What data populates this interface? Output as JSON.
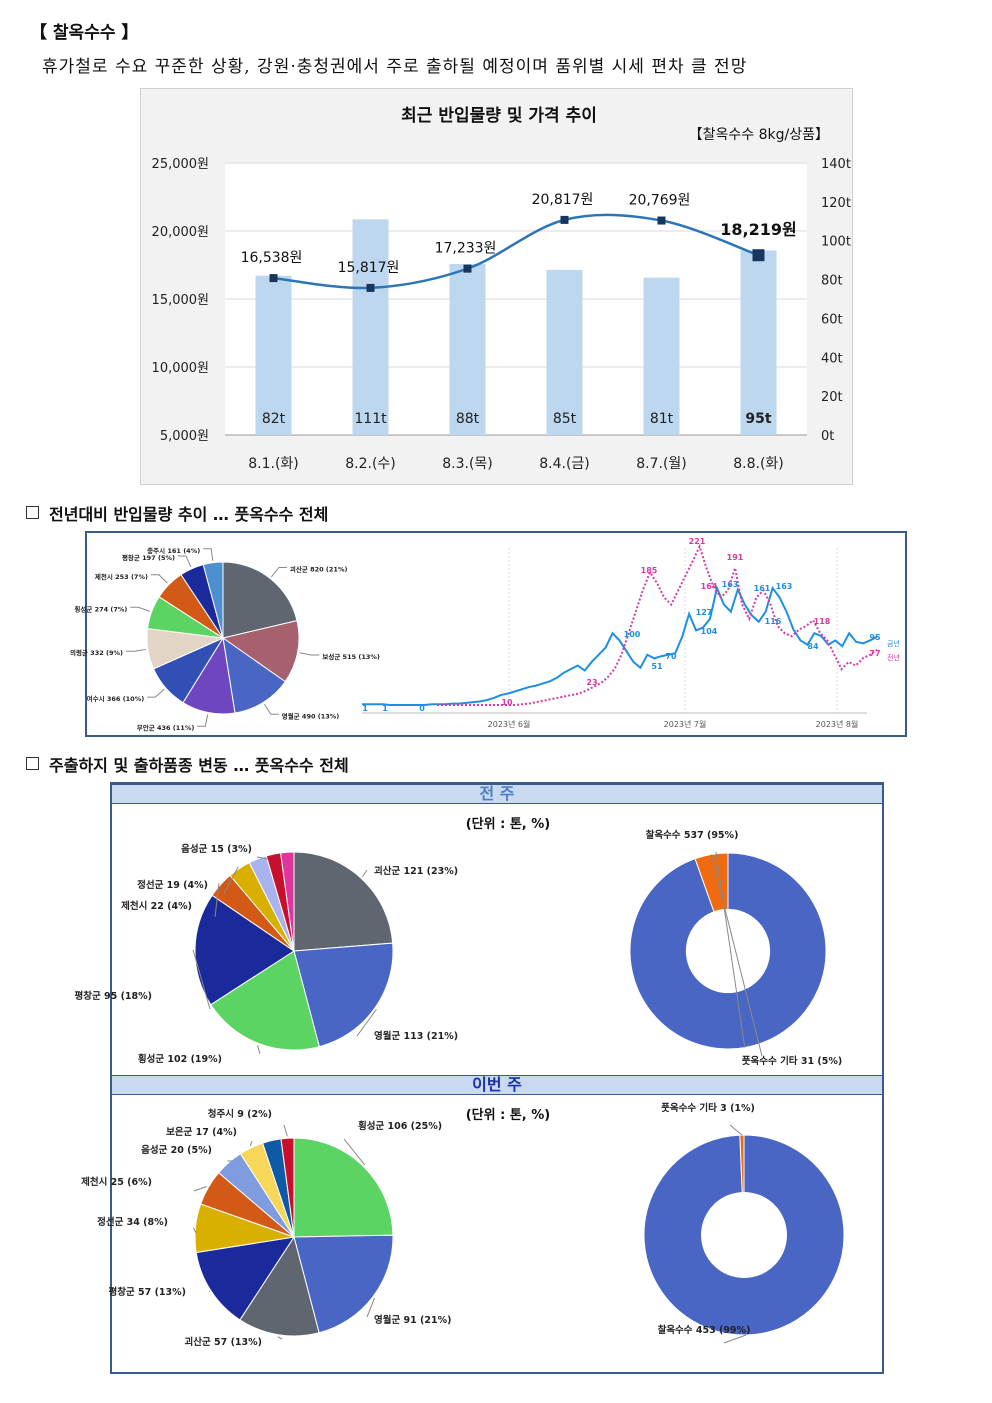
{
  "header": {
    "title": "【 찰옥수수 】",
    "subtitle": "휴가철로 수요 꾸준한 상황, 강원·충청권에서 주로 출하될 예정이며 품위별 시세 편차 클 전망"
  },
  "colors": {
    "bar": "#bdd7ee",
    "line": "#2e75b6",
    "marker": "#17375e",
    "box_border": "#3a5a8c",
    "band_bg": "#c9d9ef"
  },
  "chart_data": [
    {
      "type": "bar",
      "title": "최근 반입물량 및 가격 추이",
      "subtitle": "【찰옥수수 8kg/상품】",
      "categories": [
        "8.1.(화)",
        "8.2.(수)",
        "8.3.(목)",
        "8.4.(금)",
        "8.7.(월)",
        "8.8.(화)"
      ],
      "series": [
        {
          "values": [
            82,
            111,
            88,
            85,
            81,
            95
          ],
          "labels": [
            "82t",
            "111t",
            "88t",
            "85t",
            "81t",
            "95t"
          ]
        },
        {
          "values": [
            16538,
            15817,
            17233,
            20817,
            20769,
            18219
          ],
          "labels": [
            "16,538원",
            "15,817원",
            "17,233원",
            "20,817원",
            "20,769원",
            "18,219원"
          ]
        }
      ],
      "y_left": {
        "min": 5000,
        "max": 25000,
        "ticks": [
          "5,000원",
          "10,000원",
          "15,000원",
          "20,000원",
          "25,000원"
        ]
      },
      "y_right": {
        "min": 0,
        "max": 140,
        "ticks": [
          "0t",
          "20t",
          "40t",
          "60t",
          "80t",
          "100t",
          "120t",
          "140t"
        ]
      },
      "grid": true
    },
    {
      "type": "pie",
      "section": "전년대비 반입물량 추이 … 풋옥수수 전체",
      "slices": [
        {
          "label": "괴산군 820 (21%)",
          "value": 820,
          "color": "#5f6670"
        },
        {
          "label": "보성군 515 (13%)",
          "value": 515,
          "color": "#a6606e"
        },
        {
          "label": "영월군 490 (13%)",
          "value": 490,
          "color": "#4a66c4"
        },
        {
          "label": "무안군 436 (11%)",
          "value": 436,
          "color": "#6e47c0"
        },
        {
          "label": "여수시 366 (10%)",
          "value": 366,
          "color": "#3150b5"
        },
        {
          "label": "의령군 332 (9%)",
          "value": 332,
          "color": "#e2d5c5"
        },
        {
          "label": "횡성군 274 (7%)",
          "value": 274,
          "color": "#5bd463"
        },
        {
          "label": "제천시 253 (7%)",
          "value": 253,
          "color": "#d35a16"
        },
        {
          "label": "평창군 197 (5%)",
          "value": 197,
          "color": "#1b2a9a"
        },
        {
          "label": "충주시 161 (4%)",
          "value": 161,
          "color": "#4d8fcf"
        }
      ]
    },
    {
      "type": "line",
      "x_ticks": [
        "2023년 6월",
        "2023년 7월",
        "2023년 8월"
      ],
      "series": [
        {
          "name": "금년",
          "color": "#1f8fe0",
          "style": "solid",
          "y": [
            1,
            1,
            1,
            1,
            0,
            0,
            0,
            0,
            0,
            0,
            1,
            1,
            1,
            2,
            2,
            3,
            4,
            5,
            7,
            10,
            14,
            16,
            19,
            22,
            25,
            27,
            30,
            33,
            38,
            45,
            50,
            55,
            48,
            60,
            70,
            80,
            100,
            90,
            75,
            60,
            52,
            70,
            65,
            68,
            70,
            72,
            95,
            127,
            104,
            108,
            120,
            163,
            140,
            130,
            161,
            140,
            125,
            116,
            130,
            163,
            150,
            130,
            105,
            90,
            84,
            100,
            96,
            84,
            90,
            82,
            100,
            88,
            86,
            90,
            95
          ]
        },
        {
          "name": "전년",
          "color": "#d63ba3",
          "style": "dotted",
          "y": [
            0,
            0,
            0,
            0,
            0,
            0,
            0,
            0,
            0,
            0,
            0,
            0,
            1,
            2,
            4,
            6,
            8,
            10,
            12,
            14,
            16,
            20,
            25,
            30,
            38,
            50,
            70,
            100,
            130,
            160,
            185,
            170,
            150,
            140,
            160,
            180,
            200,
            221,
            190,
            164,
            150,
            160,
            191,
            140,
            120,
            150,
            160,
            140,
            110,
            100,
            96,
            105,
            110,
            118,
            100,
            90,
            70,
            50,
            60,
            55,
            65,
            70,
            77
          ]
        }
      ],
      "point_labels": [
        "1",
        "1",
        "0",
        "10",
        "23",
        "100",
        "51",
        "70",
        "127",
        "104",
        "163",
        "161",
        "163",
        "116",
        "84",
        "95",
        "185",
        "221",
        "164",
        "191",
        "118",
        "77"
      ],
      "legend": [
        "금년",
        "전년"
      ]
    },
    {
      "type": "pie",
      "period": "전 주",
      "unit": "(단위 : 톤, %)",
      "slices": [
        {
          "label": "괴산군 121 (23%)",
          "value": 121,
          "color": "#5f6670"
        },
        {
          "label": "영월군 113 (21%)",
          "value": 113,
          "color": "#4a66c4"
        },
        {
          "label": "횡성군 102 (19%)",
          "value": 102,
          "color": "#5bd463"
        },
        {
          "label": "평창군 95 (18%)",
          "value": 95,
          "color": "#1b2a9a"
        },
        {
          "label": "제천시 22 (4%)",
          "value": 22,
          "color": "#d35a16"
        },
        {
          "label": "정선군 19 (4%)",
          "value": 19,
          "color": "#d9b000"
        },
        {
          "label": "음성군 15 (3%)",
          "value": 15,
          "color": "#a9b3f0"
        },
        {
          "label": "",
          "value": 12,
          "color": "#c8102e"
        },
        {
          "label": "",
          "value": 11,
          "color": "#e0359a"
        }
      ]
    },
    {
      "type": "pie",
      "period": "전 주",
      "donut": true,
      "slices": [
        {
          "label": "찰옥수수 537 (95%)",
          "value": 537,
          "color": "#4a66c4"
        },
        {
          "label": "풋옥수수 기타 31 (5%)",
          "value": 31,
          "color": "#ef6a10"
        }
      ]
    },
    {
      "type": "pie",
      "period": "이번 주",
      "unit": "(단위 : 톤, %)",
      "slices": [
        {
          "label": "횡성군 106 (25%)",
          "value": 106,
          "color": "#5bd463"
        },
        {
          "label": "영월군 91 (21%)",
          "value": 91,
          "color": "#4a66c4"
        },
        {
          "label": "괴산군 57 (13%)",
          "value": 57,
          "color": "#5f6670"
        },
        {
          "label": "평창군 57 (13%)",
          "value": 57,
          "color": "#1b2a9a"
        },
        {
          "label": "정선군 34 (8%)",
          "value": 34,
          "color": "#d9b000"
        },
        {
          "label": "제천시 25 (6%)",
          "value": 25,
          "color": "#d35a16"
        },
        {
          "label": "음성군 20 (5%)",
          "value": 20,
          "color": "#7f9cde"
        },
        {
          "label": "보은군 17 (4%)",
          "value": 17,
          "color": "#f7d75a"
        },
        {
          "label": "",
          "value": 13,
          "color": "#0e5aa6"
        },
        {
          "label": "청주시 9 (2%)",
          "value": 9,
          "color": "#c8102e"
        }
      ]
    },
    {
      "type": "pie",
      "period": "이번 주",
      "donut": true,
      "slices": [
        {
          "label": "찰옥수수 453 (99%)",
          "value": 453,
          "color": "#4a66c4"
        },
        {
          "label": "풋옥수수 기타 3 (1%)",
          "value": 3,
          "color": "#ef6a10"
        }
      ]
    }
  ],
  "sections": {
    "yoy": "전년대비 반입물량 추이 … 풋옥수수 전체",
    "shipping": "주출하지 및 출하품종 변동 … 풋옥수수 전체",
    "prev_week": "전 주",
    "this_week": "이번 주",
    "unit": "(단위 : 톤, %)"
  }
}
